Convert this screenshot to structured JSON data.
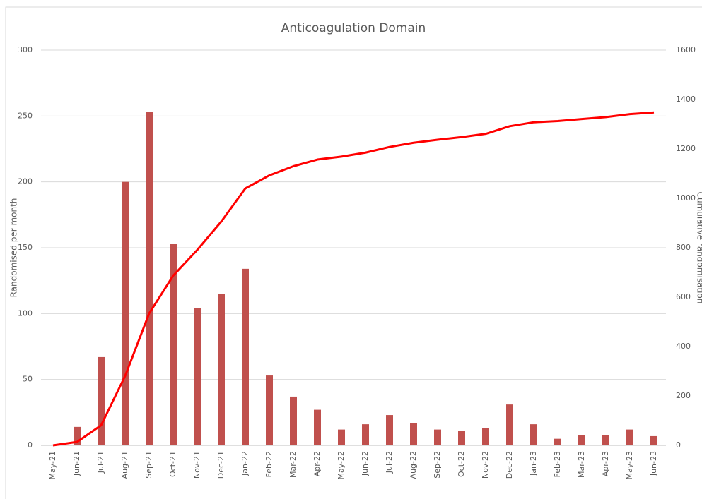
{
  "chart_data": {
    "type": "bar_line",
    "title": "Anticoagulation Domain",
    "ylabel": "Randomised per month",
    "y2label": "Cumulative randomisation",
    "categories": [
      "May-21",
      "Jun-21",
      "Jul-21",
      "Aug-21",
      "Sep-21",
      "Oct-21",
      "Nov-21",
      "Dec-21",
      "Jan-22",
      "Feb-22",
      "Mar-22",
      "Apr-22",
      "May-22",
      "Jun-22",
      "Jul-22",
      "Aug-22",
      "Sep-22",
      "Oct-22",
      "Nov-22",
      "Dec-22",
      "Jan-23",
      "Feb-23",
      "Mar-23",
      "Apr-23",
      "May-23",
      "Jun-23"
    ],
    "series": [
      {
        "type": "bar",
        "color": "#c0504d",
        "values": [
          0,
          14,
          67,
          200,
          253,
          153,
          104,
          115,
          134,
          53,
          37,
          27,
          12,
          16,
          23,
          17,
          12,
          11,
          13,
          31,
          16,
          5,
          8,
          8,
          12,
          7
        ]
      },
      {
        "type": "line",
        "axis": "y2",
        "color": "#ff0000",
        "values": [
          0,
          14,
          81,
          281,
          534,
          687,
          791,
          906,
          1040,
          1093,
          1130,
          1157,
          1169,
          1185,
          1208,
          1225,
          1237,
          1248,
          1261,
          1292,
          1308,
          1313,
          1321,
          1329,
          1341,
          1348
        ]
      }
    ],
    "ylim": [
      0,
      300
    ],
    "yticks": [
      0,
      50,
      100,
      150,
      200,
      250,
      300
    ],
    "y2lim": [
      0,
      1600
    ],
    "y2ticks": [
      0,
      200,
      400,
      600,
      800,
      1000,
      1200,
      1400,
      1600
    ],
    "grid": true
  }
}
